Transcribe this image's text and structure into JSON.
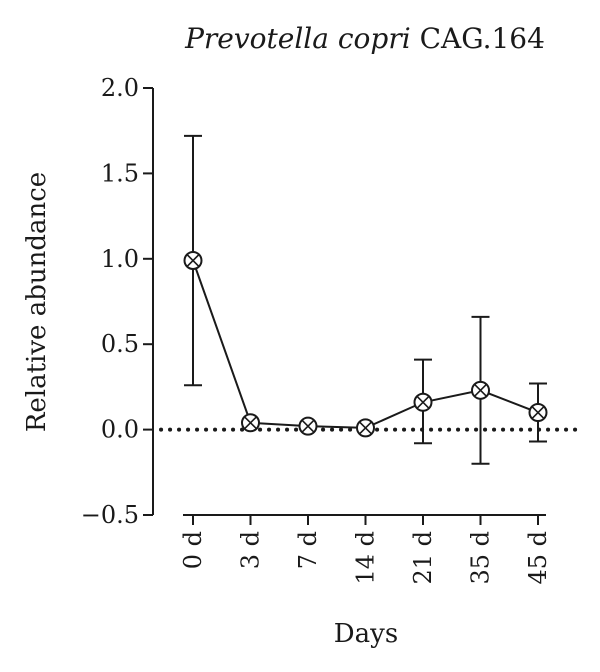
{
  "chart_data": {
    "type": "line",
    "title": {
      "italic": "Prevotella copri",
      "rest": " CAG.164"
    },
    "xlabel": "Days",
    "ylabel": "Relative abundance",
    "categories": [
      "0 d",
      "3 d",
      "7 d",
      "14 d",
      "21 d",
      "35 d",
      "45 d"
    ],
    "y_ticks": [
      "2.0",
      "1.5",
      "1.0",
      "0.5",
      "0.0",
      "−0.5"
    ],
    "ylim": [
      -0.5,
      2.0
    ],
    "reference_line": {
      "y": 0,
      "style": "dotted"
    },
    "series": [
      {
        "values": [
          0.99,
          0.04,
          0.02,
          0.01,
          0.16,
          0.23,
          0.1
        ],
        "error_upper": [
          1.72,
          0.04,
          0.02,
          0.01,
          0.41,
          0.66,
          0.27
        ],
        "error_lower": [
          0.26,
          0.04,
          0.02,
          0.01,
          -0.08,
          -0.2,
          -0.07
        ],
        "marker": "circle-x",
        "color": "#1a1a1a"
      }
    ],
    "grid": false,
    "legend": "none"
  }
}
